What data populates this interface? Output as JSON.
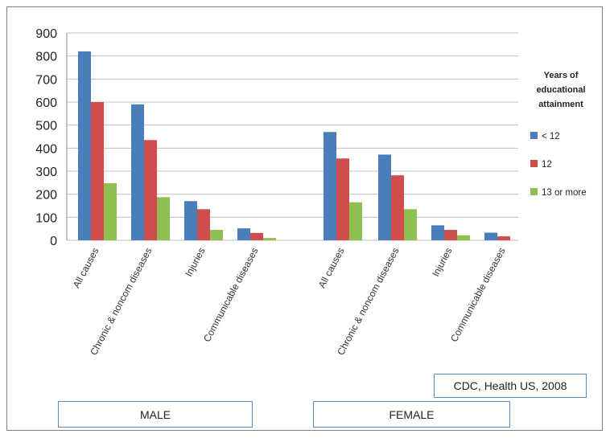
{
  "chart_data": {
    "type": "bar",
    "title": "",
    "xlabel": "",
    "ylabel": "",
    "ylim": [
      0,
      900
    ],
    "yticks": [
      0,
      100,
      200,
      300,
      400,
      500,
      600,
      700,
      800,
      900
    ],
    "grid": true,
    "legend_title": "Years of educational attainment",
    "legend_title_lines": [
      "Years  of",
      "educational",
      "attainment"
    ],
    "legend_position": "right",
    "groups": [
      {
        "name": "MALE",
        "categories": [
          "All causes",
          "Chronic & noncom diseases",
          "Injuries",
          "Communicable diseases"
        ]
      },
      {
        "name": "FEMALE",
        "categories": [
          "All causes",
          "Chronic & noncom diseases",
          "Injuries",
          "Communicable diseases"
        ]
      }
    ],
    "series": [
      {
        "name": "< 12",
        "color": "#4a7ebb",
        "values": [
          820,
          590,
          170,
          52,
          470,
          372,
          65,
          33
        ]
      },
      {
        "name": "12",
        "color": "#cf4e4b",
        "values": [
          600,
          435,
          135,
          32,
          355,
          282,
          45,
          17
        ]
      },
      {
        "name": "13 or more",
        "color": "#8fbf4e",
        "values": [
          248,
          187,
          45,
          10,
          165,
          135,
          22,
          0
        ]
      }
    ]
  },
  "source_label": "CDC, Health US, 2008"
}
